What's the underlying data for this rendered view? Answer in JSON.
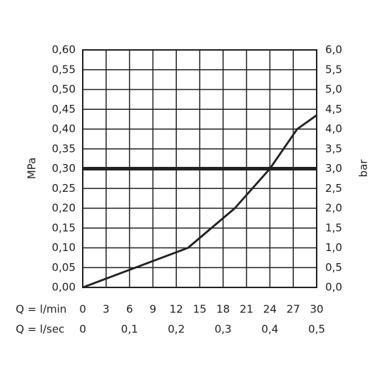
{
  "chart_data": {
    "type": "line",
    "y_label": "MPa",
    "y2_label": "bar",
    "x_label": "Q = l/min",
    "x2_label": "Q = l/sec",
    "x": [
      0,
      13.5,
      19.5,
      24,
      27.5,
      30
    ],
    "values": [
      0,
      0.1,
      0.2,
      0.3,
      0.4,
      0.435
    ],
    "color": "#222222",
    "reference_line": 0.3,
    "xlim": [
      0,
      30
    ],
    "xticks": [
      0,
      3,
      6,
      9,
      12,
      15,
      18,
      21,
      24,
      27,
      30
    ],
    "x2lim": [
      0,
      0.5
    ],
    "x2ticks": [
      0,
      {
        "value": 0.1,
        "label": "0,1"
      },
      {
        "value": 0.2,
        "label": "0,2"
      },
      {
        "value": 0.3,
        "label": "0,3"
      },
      {
        "value": 0.4,
        "label": "0,4"
      },
      {
        "value": 0.5,
        "label": "0,5"
      }
    ],
    "ylim": [
      0,
      0.6
    ],
    "yticks": [
      {
        "value": 0,
        "label": "0,00"
      },
      {
        "value": 0.05,
        "label": "0,05"
      },
      {
        "value": 0.1,
        "label": "0,10"
      },
      {
        "value": 0.15,
        "label": "0,15"
      },
      {
        "value": 0.2,
        "label": "0,20"
      },
      {
        "value": 0.25,
        "label": "0,25"
      },
      {
        "value": 0.3,
        "label": "0,30"
      },
      {
        "value": 0.35,
        "label": "0,35"
      },
      {
        "value": 0.4,
        "label": "0,40"
      },
      {
        "value": 0.45,
        "label": "0,45"
      },
      {
        "value": 0.5,
        "label": "0,50"
      },
      {
        "value": 0.55,
        "label": "0,55"
      },
      {
        "value": 0.6,
        "label": "0,60"
      }
    ],
    "y2lim": [
      0,
      6
    ],
    "y2ticks": [
      {
        "value": 0,
        "label": "0,0"
      },
      {
        "value": 0.5,
        "label": "0,5"
      },
      {
        "value": 1,
        "label": "1,0"
      },
      {
        "value": 1.5,
        "label": "1,5"
      },
      {
        "value": 2,
        "label": "2,0"
      },
      {
        "value": 2.5,
        "label": "2,5"
      },
      {
        "value": 3,
        "label": "3,0"
      },
      {
        "value": 3.5,
        "label": "3,5"
      },
      {
        "value": 4,
        "label": "4,0"
      },
      {
        "value": 4.5,
        "label": "4,5"
      },
      {
        "value": 5,
        "label": "5,0"
      },
      {
        "value": 5.5,
        "label": "5,5"
      },
      {
        "value": 6,
        "label": "6,0"
      }
    ],
    "grid": true
  }
}
